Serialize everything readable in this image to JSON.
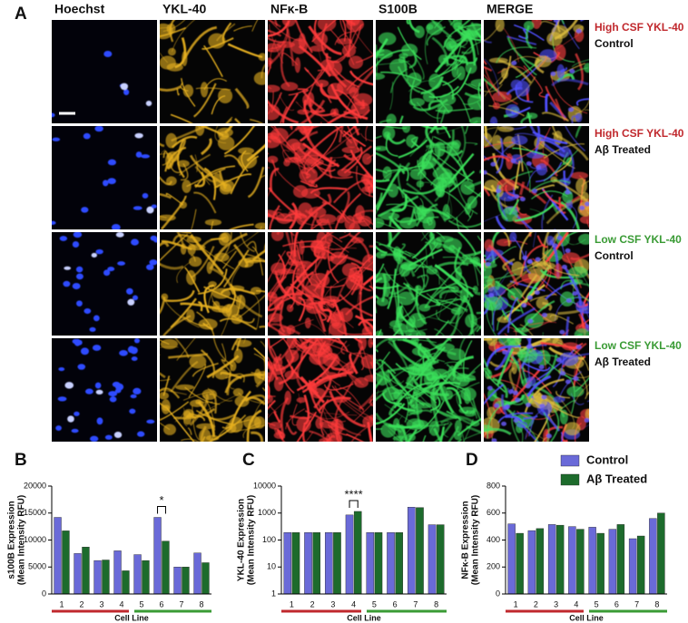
{
  "figure": {
    "panel_labels": [
      "A",
      "B",
      "C",
      "D"
    ],
    "columns": [
      "Hoechst",
      "YKL-40",
      "NFκ-B",
      "S100B",
      "MERGE"
    ],
    "rows": [
      {
        "group": "High CSF YKL-40",
        "condition": "Control",
        "color": "#c0282d"
      },
      {
        "group": "High CSF YKL-40",
        "condition": "Aβ Treated",
        "color": "#c0282d"
      },
      {
        "group": "Low CSF YKL-40",
        "condition": "Control",
        "color": "#3a9b35"
      },
      {
        "group": "Low CSF YKL-40",
        "condition": "Aβ Treated",
        "color": "#3a9b35"
      }
    ]
  },
  "chart_data": [
    {
      "type": "bar",
      "ylabel": [
        "s100B Expression",
        "(Mean Intensity RFU)"
      ],
      "xlabel": "Cell Line",
      "categories": [
        "1",
        "2",
        "3",
        "4",
        "5",
        "6",
        "7",
        "8"
      ],
      "series": [
        {
          "name": "Control",
          "color": "#6a6ad8",
          "values": [
            14200,
            7500,
            6200,
            8000,
            7300,
            14200,
            5000,
            7600
          ]
        },
        {
          "name": "Aβ Treated",
          "color": "#1d6b2c",
          "values": [
            11700,
            8700,
            6300,
            4300,
            6200,
            9800,
            5000,
            5800
          ]
        }
      ],
      "ylim": [
        0,
        20000
      ],
      "yticks": [
        0,
        5000,
        10000,
        15000,
        20000
      ],
      "annotations": [
        {
          "text": "*",
          "category": "6"
        }
      ]
    },
    {
      "type": "bar",
      "ylabel": [
        "YKL-40 Expression",
        "(Mean Intensity RFU)"
      ],
      "xlabel": "Cell Line",
      "categories": [
        "1",
        "2",
        "3",
        "4",
        "5",
        "6",
        "7",
        "8"
      ],
      "series": [
        {
          "name": "Control",
          "color": "#6a6ad8",
          "values": [
            190,
            190,
            190,
            850,
            190,
            190,
            1650,
            370
          ]
        },
        {
          "name": "Aβ Treated",
          "color": "#1d6b2c",
          "values": [
            190,
            190,
            190,
            1150,
            190,
            190,
            1600,
            370
          ]
        }
      ],
      "ylim": [
        1,
        10000
      ],
      "yticks": [
        1,
        10,
        100,
        1000,
        10000
      ],
      "log_scale": true,
      "annotations": [
        {
          "text": "****",
          "category": "4"
        }
      ]
    },
    {
      "type": "bar",
      "ylabel": [
        "NFκ-B Expression",
        "(Mean Intensity RFU)"
      ],
      "xlabel": "Cell Line",
      "categories": [
        "1",
        "2",
        "3",
        "4",
        "5",
        "6",
        "7",
        "8"
      ],
      "series": [
        {
          "name": "Control",
          "color": "#6a6ad8",
          "values": [
            520,
            470,
            515,
            500,
            495,
            480,
            410,
            560
          ]
        },
        {
          "name": "Aβ Treated",
          "color": "#1d6b2c",
          "values": [
            450,
            485,
            510,
            480,
            450,
            515,
            430,
            600
          ]
        }
      ],
      "ylim": [
        0,
        800
      ],
      "yticks": [
        0,
        200,
        400,
        600,
        800
      ],
      "legend": "top-right"
    }
  ]
}
